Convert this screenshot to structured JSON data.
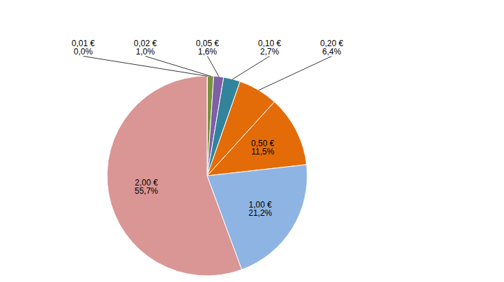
{
  "chart_data": {
    "type": "pie",
    "categories": [
      "0,01 €",
      "0,02 €",
      "0,05 €",
      "0,10 €",
      "0,20 €",
      "0,50 €",
      "1,00 €",
      "2,00 €"
    ],
    "values": [
      0.05,
      1.0,
      1.6,
      2.7,
      6.4,
      11.5,
      21.2,
      55.7
    ],
    "value_labels": [
      "0,0%",
      "1,0%",
      "1,6%",
      "2,7%",
      "6,4%",
      "11,5%",
      "21,2%",
      "55,7%"
    ],
    "colors": [
      "#c0504d",
      "#76923c",
      "#7f5fa6",
      "#31849b",
      "#e36c09",
      "#e36c09",
      "#8eb4e3",
      "#d99694"
    ],
    "data_labels": true
  }
}
